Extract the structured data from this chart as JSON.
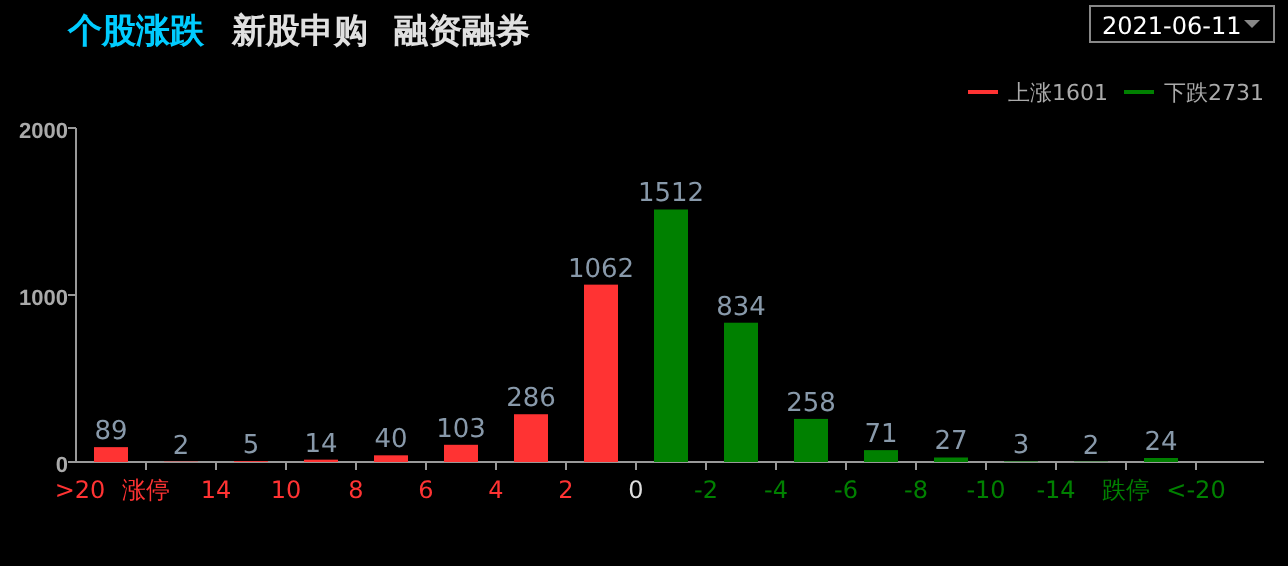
{
  "chart_data": {
    "type": "bar",
    "title": "个股涨跌",
    "annotations": [
      "新股申购",
      "融资融券",
      "2021-06-11"
    ],
    "categories": [
      ">20",
      "涨停",
      "14",
      "10",
      "8",
      "6",
      "4",
      "2",
      "0",
      "-2",
      "-4",
      "-6",
      "-8",
      "-10",
      "-14",
      "跌停",
      "<-20"
    ],
    "series": [
      {
        "name": "上涨1601",
        "color": "#ff3333",
        "values": [
          89,
          2,
          5,
          14,
          40,
          103,
          286,
          1062,
          null,
          null,
          null,
          null,
          null,
          null,
          null,
          null,
          null
        ]
      },
      {
        "name": "下跌2731",
        "color": "#008000",
        "values": [
          null,
          null,
          null,
          null,
          null,
          null,
          null,
          null,
          1512,
          834,
          258,
          71,
          27,
          3,
          2,
          24,
          null
        ]
      }
    ],
    "ylim": [
      0,
      2000
    ],
    "yticks": [
      0,
      1000,
      2000
    ],
    "data_labels": true,
    "legend": "top right",
    "grid": false
  }
}
